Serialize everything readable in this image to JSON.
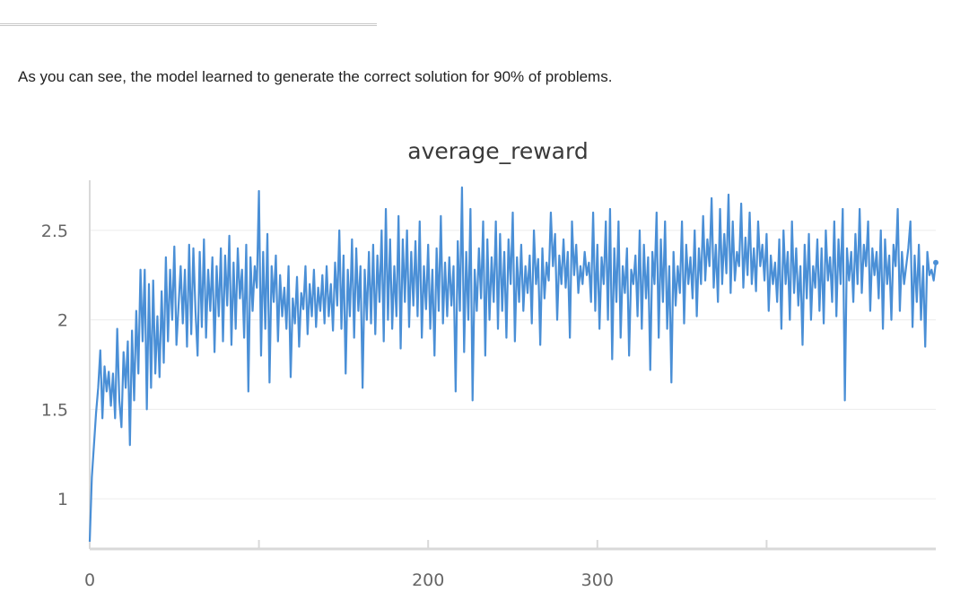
{
  "page": {
    "intro_text": "As you can see, the model learned to generate the correct solution for 90% of problems."
  },
  "colors": {
    "line": "#4a8fd6",
    "grid": "#ececec",
    "axis": "#d9d9d9",
    "text": "#666666"
  },
  "chart_data": {
    "type": "line",
    "title": "average_reward",
    "xlabel": "",
    "ylabel": "",
    "xlim": [
      0,
      500
    ],
    "ylim": [
      0.72,
      2.76
    ],
    "xticks": [
      {
        "value": 0,
        "label": "0"
      },
      {
        "value": 200,
        "label": "200"
      },
      {
        "value": 300,
        "label": "300"
      }
    ],
    "xticks_unlabeled": [
      100,
      400
    ],
    "yticks": [
      {
        "value": 1,
        "label": "1"
      },
      {
        "value": 1.5,
        "label": "1.5"
      },
      {
        "value": 2,
        "label": "2"
      },
      {
        "value": 2.5,
        "label": "2.5"
      }
    ],
    "grid": true,
    "legend": "none",
    "series": [
      {
        "values": [
          0.76,
          1.12,
          1.3,
          1.48,
          1.62,
          1.83,
          1.45,
          1.74,
          1.6,
          1.71,
          1.52,
          1.7,
          1.45,
          1.95,
          1.55,
          1.4,
          1.82,
          1.62,
          1.88,
          1.3,
          1.94,
          1.55,
          2.05,
          1.7,
          2.28,
          1.88,
          2.28,
          1.5,
          2.2,
          1.62,
          2.22,
          1.7,
          2.02,
          1.68,
          2.16,
          1.76,
          2.35,
          1.88,
          2.28,
          2.0,
          2.41,
          1.86,
          2.08,
          2.3,
          1.98,
          2.28,
          1.85,
          2.42,
          1.92,
          2.4,
          2.05,
          1.8,
          2.38,
          1.96,
          2.45,
          1.9,
          2.28,
          2.05,
          2.35,
          1.82,
          2.3,
          2.02,
          2.4,
          1.88,
          2.36,
          2.08,
          2.47,
          1.86,
          2.32,
          1.95,
          2.4,
          2.12,
          2.28,
          1.9,
          2.42,
          1.6,
          2.35,
          2.05,
          2.3,
          2.18,
          2.72,
          1.8,
          2.38,
          1.95,
          2.48,
          1.65,
          2.3,
          2.1,
          2.36,
          1.88,
          2.25,
          2.02,
          2.18,
          1.95,
          2.3,
          1.68,
          2.12,
          1.98,
          2.24,
          1.85,
          2.15,
          2.06,
          2.3,
          1.92,
          2.2,
          2.02,
          2.28,
          1.96,
          2.18,
          2.05,
          2.25,
          1.98,
          2.3,
          2.02,
          2.2,
          1.94,
          2.32,
          2.08,
          2.5,
          1.95,
          2.36,
          1.7,
          2.28,
          2.02,
          2.45,
          1.9,
          2.4,
          2.05,
          2.3,
          1.62,
          2.28,
          2.0,
          2.38,
          1.98,
          2.42,
          1.92,
          2.36,
          2.1,
          2.5,
          1.88,
          2.62,
          2.0,
          2.45,
          1.95,
          2.3,
          2.02,
          2.58,
          1.84,
          2.45,
          2.1,
          2.5,
          1.96,
          2.38,
          2.08,
          2.44,
          2.02,
          2.55,
          1.9,
          2.3,
          2.06,
          2.42,
          1.95,
          2.28,
          1.8,
          2.4,
          2.05,
          2.58,
          1.98,
          2.32,
          2.02,
          2.35,
          2.08,
          2.3,
          1.6,
          2.44,
          2.05,
          2.74,
          1.82,
          2.38,
          2.0,
          2.62,
          1.55,
          2.28,
          2.05,
          2.4,
          2.12,
          2.55,
          1.8,
          2.45,
          2.0,
          2.35,
          2.1,
          2.55,
          1.95,
          2.48,
          2.05,
          2.38,
          1.9,
          2.45,
          2.2,
          2.6,
          1.88,
          2.35,
          2.1,
          2.42,
          2.05,
          2.3,
          2.15,
          2.36,
          1.98,
          2.5,
          2.2,
          2.34,
          1.86,
          2.4,
          2.12,
          2.32,
          2.22,
          2.6,
          2.3,
          2.48,
          2.0,
          2.36,
          2.2,
          2.45,
          2.18,
          2.38,
          1.9,
          2.55,
          2.25,
          2.42,
          2.15,
          2.3,
          2.2,
          2.38,
          2.25,
          2.32,
          2.1,
          2.6,
          2.05,
          2.42,
          1.95,
          2.35,
          2.2,
          2.55,
          2.0,
          2.62,
          1.78,
          2.4,
          2.1,
          2.55,
          1.9,
          2.3,
          2.15,
          2.4,
          1.8,
          2.28,
          2.2,
          2.36,
          2.02,
          2.5,
          1.95,
          2.42,
          2.12,
          2.35,
          1.72,
          2.38,
          2.2,
          2.6,
          1.9,
          2.45,
          2.1,
          2.55,
          1.95,
          2.3,
          1.65,
          2.38,
          2.08,
          2.3,
          2.15,
          2.55,
          1.98,
          2.42,
          2.2,
          2.35,
          2.12,
          2.5,
          2.02,
          2.4,
          2.2,
          2.58,
          2.22,
          2.45,
          2.3,
          2.68,
          2.18,
          2.42,
          2.1,
          2.62,
          2.2,
          2.48,
          2.26,
          2.7,
          2.15,
          2.55,
          2.22,
          2.38,
          2.3,
          2.65,
          2.18,
          2.46,
          2.25,
          2.6,
          2.2,
          2.4,
          2.16,
          2.55,
          2.3,
          2.42,
          2.22,
          2.48,
          2.05,
          2.36,
          2.2,
          2.32,
          2.1,
          2.45,
          1.95,
          2.5,
          2.2,
          2.38,
          2.0,
          2.55,
          2.15,
          2.4,
          2.08,
          2.3,
          1.86,
          2.42,
          2.12,
          2.48,
          2.0,
          2.3,
          2.18,
          2.45,
          2.05,
          2.4,
          1.98,
          2.5,
          2.22,
          2.35,
          2.1,
          2.55,
          2.02,
          2.45,
          2.2,
          2.62,
          1.55,
          2.4,
          2.22,
          2.38,
          2.1,
          2.48,
          2.2,
          2.62,
          2.15,
          2.42,
          2.3,
          2.55,
          2.05,
          2.4,
          2.25,
          2.38,
          2.12,
          2.5,
          1.95,
          2.45,
          2.2,
          2.36,
          2.0,
          2.42,
          2.3,
          2.62,
          2.05,
          2.38,
          2.2,
          2.3,
          2.4,
          2.55,
          1.96,
          2.36,
          2.1,
          2.42,
          2.0,
          2.3,
          1.85,
          2.38,
          2.25,
          2.28,
          2.22,
          2.32
        ]
      }
    ]
  }
}
